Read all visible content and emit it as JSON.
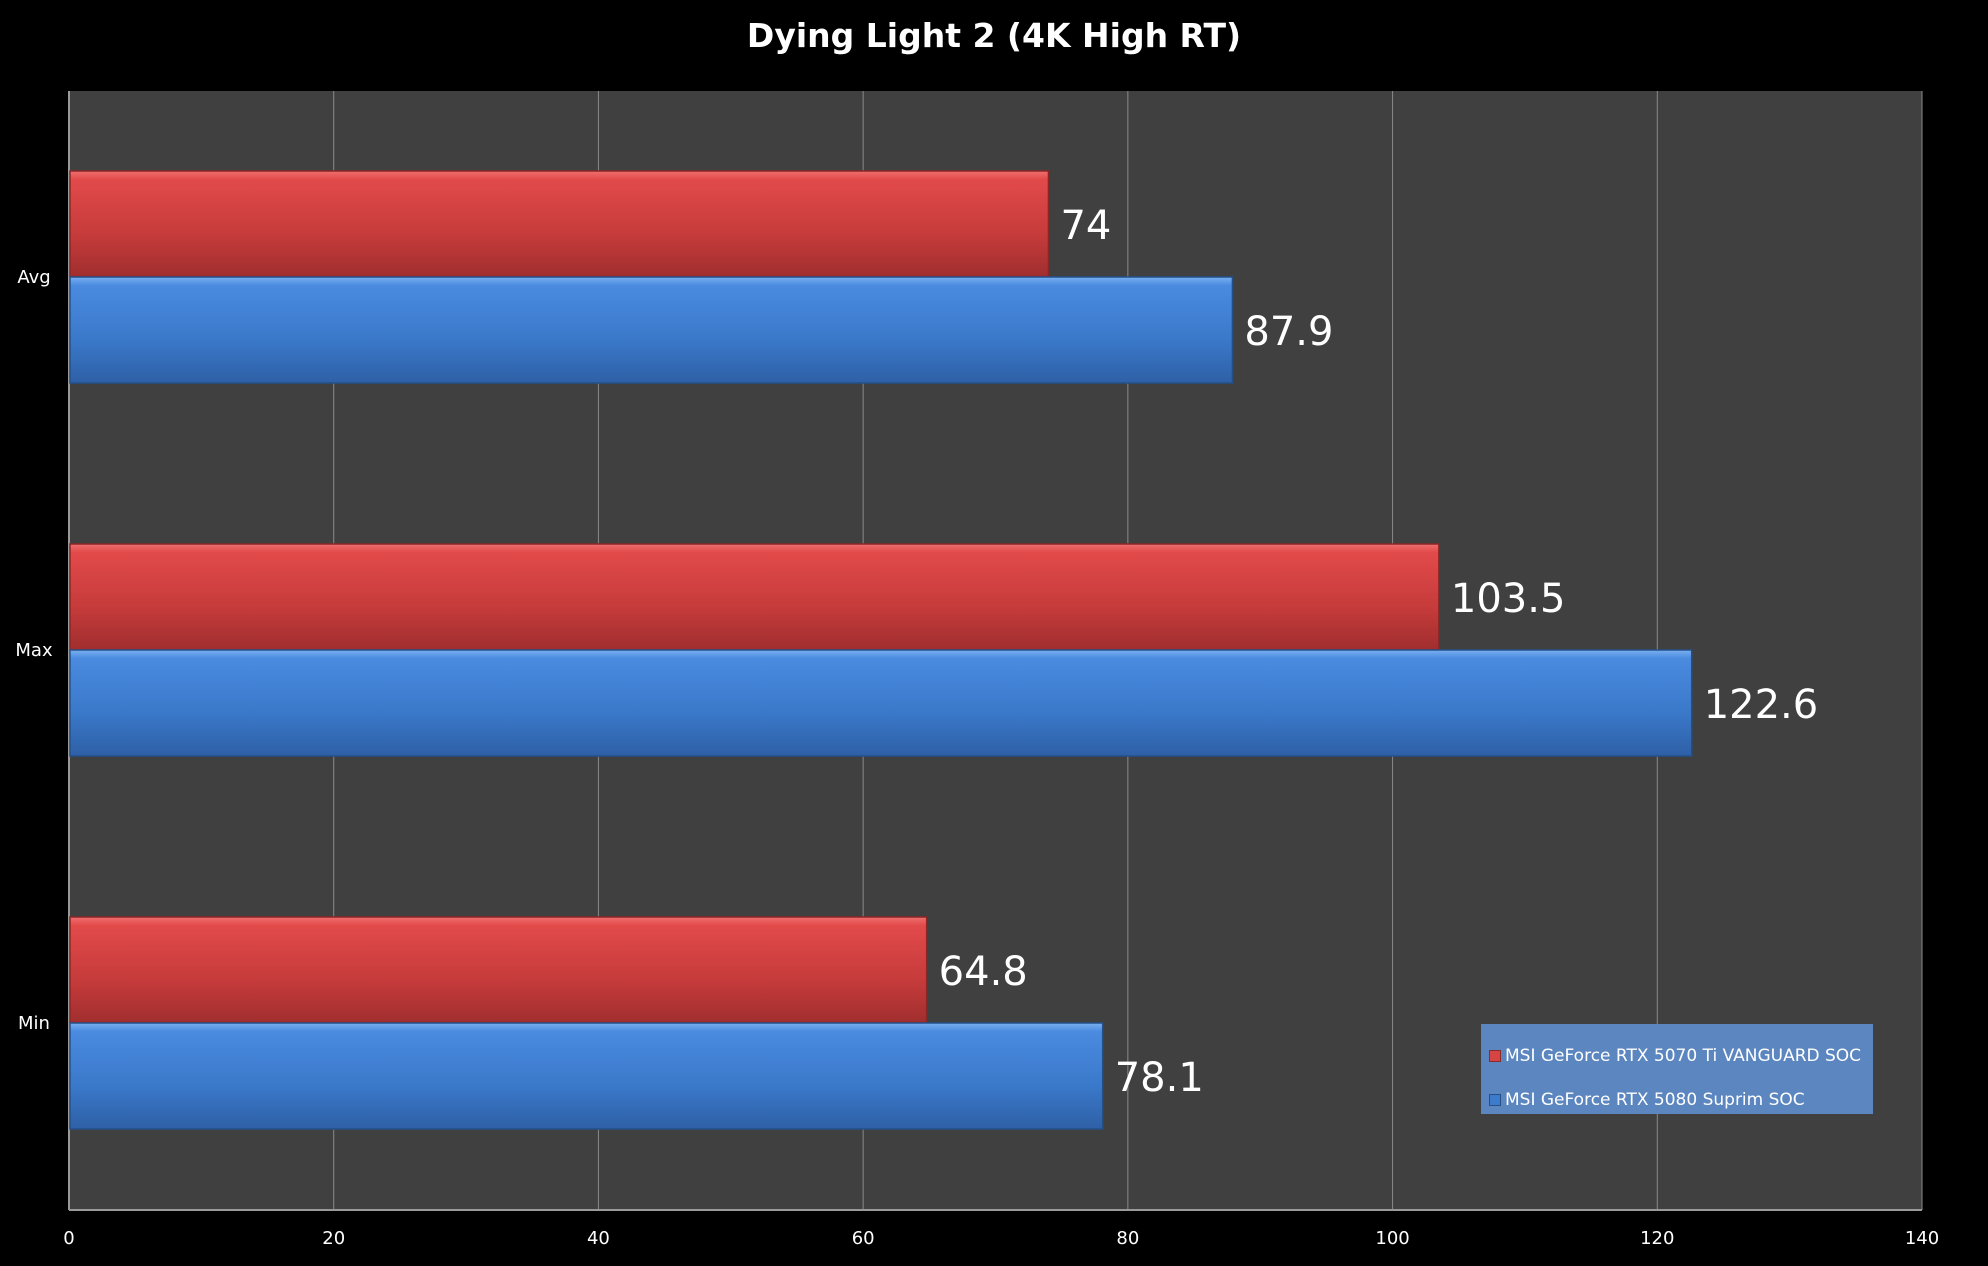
{
  "chart_data": {
    "type": "bar",
    "orientation": "horizontal",
    "title": "Dying Light 2 (4K High RT)",
    "categories": [
      "Avg",
      "Max",
      "Min"
    ],
    "series": [
      {
        "name": "MSI GeForce RTX 5070 Ti VANGUARD SOC",
        "values": [
          74,
          103.5,
          64.8
        ],
        "color": "#cc3b3b"
      },
      {
        "name": "MSI GeForce RTX 5080 Suprim SOC",
        "values": [
          87.9,
          122.6,
          78.1
        ],
        "color": "#3d7ccd"
      }
    ],
    "x_ticks": [
      0,
      20,
      40,
      60,
      80,
      100,
      120,
      140
    ],
    "xlim": [
      0,
      140
    ],
    "grid": "vertical",
    "legend_position": "bottom-right",
    "plot_background": "#404040",
    "page_background": "#000000",
    "text_color": "#ffffff"
  }
}
